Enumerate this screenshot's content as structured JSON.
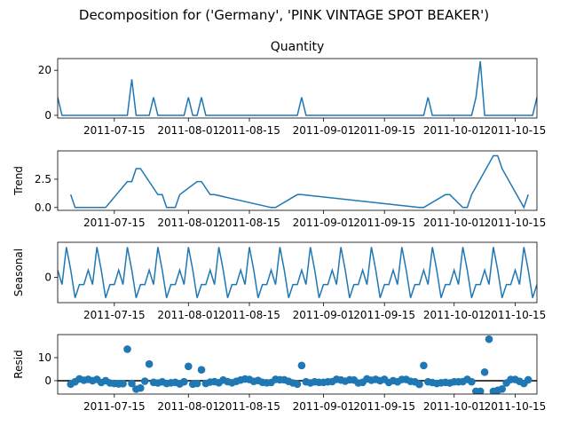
{
  "title": "Decomposition for ('Germany', 'PINK VINTAGE SPOT BEAKER')",
  "colors": {
    "series": "#1f77b4",
    "axis": "#000000",
    "zero_line": "#000000"
  },
  "x_ticks": [
    "2011-07-15",
    "2011-08-01",
    "2011-08-15",
    "2011-09-01",
    "2011-09-15",
    "2011-10-01",
    "2011-10-15"
  ],
  "chart_data": [
    {
      "type": "line",
      "subtitle": "Quantity",
      "ylabel": "",
      "xlim": [
        "2011-07-02",
        "2011-10-20"
      ],
      "ylim": [
        -1.2,
        25.2
      ],
      "yticks": [
        0,
        20
      ],
      "x": [
        "2011-07-02",
        "2011-07-03",
        "2011-07-06",
        "2011-07-18",
        "2011-07-19",
        "2011-07-20",
        "2011-07-23",
        "2011-07-24",
        "2011-07-25",
        "2011-07-31",
        "2011-08-01",
        "2011-08-02",
        "2011-08-03",
        "2011-08-04",
        "2011-08-05",
        "2011-08-26",
        "2011-08-27",
        "2011-08-28",
        "2011-09-24",
        "2011-09-25",
        "2011-09-26",
        "2011-10-05",
        "2011-10-06",
        "2011-10-07",
        "2011-10-08",
        "2011-10-19",
        "2011-10-20"
      ],
      "values": [
        8,
        0,
        0,
        0,
        16,
        0,
        0,
        8,
        0,
        0,
        8,
        0,
        0,
        8,
        0,
        0,
        8,
        0,
        0,
        8,
        0,
        0,
        8,
        24,
        0,
        0,
        8
      ]
    },
    {
      "type": "line",
      "subtitle": "",
      "ylabel": "Trend",
      "xlim": [
        "2011-07-02",
        "2011-10-20"
      ],
      "ylim": [
        -0.25,
        5.0
      ],
      "yticks": [
        0.0,
        2.5
      ],
      "yticklabels": [
        "0.0",
        "2.5"
      ],
      "x": [
        "2011-07-05",
        "2011-07-06",
        "2011-07-12",
        "2011-07-13",
        "2011-07-18",
        "2011-07-19",
        "2011-07-20",
        "2011-07-21",
        "2011-07-25",
        "2011-07-26",
        "2011-07-27",
        "2011-07-29",
        "2011-07-30",
        "2011-08-03",
        "2011-08-04",
        "2011-08-06",
        "2011-08-07",
        "2011-08-20",
        "2011-08-21",
        "2011-08-26",
        "2011-08-27",
        "2011-09-23",
        "2011-09-24",
        "2011-09-29",
        "2011-09-30",
        "2011-10-03",
        "2011-10-04",
        "2011-10-05",
        "2011-10-10",
        "2011-10-11",
        "2011-10-12",
        "2011-10-17",
        "2011-10-18"
      ],
      "values": [
        1.14,
        0,
        0,
        0,
        2.29,
        2.29,
        3.43,
        3.43,
        1.14,
        1.14,
        0,
        0,
        1.14,
        2.29,
        2.29,
        1.14,
        1.14,
        0,
        0,
        1.14,
        1.14,
        0,
        0,
        1.14,
        1.14,
        0,
        0,
        1.14,
        4.57,
        4.57,
        3.43,
        0,
        1.14
      ]
    },
    {
      "type": "line",
      "subtitle": "",
      "ylabel": "Seasonal",
      "xlim": [
        "2011-07-02",
        "2011-10-20"
      ],
      "ylim": [
        -1.05,
        1.45
      ],
      "yticks": [
        0
      ],
      "pattern": [
        0.3,
        -0.3,
        1.25,
        0.3,
        -0.85,
        -0.3,
        -0.3
      ],
      "start": "2011-07-02",
      "days": 111
    },
    {
      "type": "scatter",
      "subtitle": "",
      "ylabel": "Resid",
      "xlim": [
        "2011-07-02",
        "2011-10-20"
      ],
      "ylim": [
        -5.8,
        20
      ],
      "yticks": [
        0,
        10
      ],
      "zero_line": 0,
      "x": [
        "2011-07-05",
        "2011-07-06",
        "2011-07-07",
        "2011-07-08",
        "2011-07-09",
        "2011-07-10",
        "2011-07-11",
        "2011-07-12",
        "2011-07-13",
        "2011-07-14",
        "2011-07-15",
        "2011-07-16",
        "2011-07-17",
        "2011-07-18",
        "2011-07-19",
        "2011-07-20",
        "2011-07-21",
        "2011-07-22",
        "2011-07-23",
        "2011-07-24",
        "2011-07-25",
        "2011-07-26",
        "2011-07-27",
        "2011-07-28",
        "2011-07-29",
        "2011-07-30",
        "2011-07-31",
        "2011-08-01",
        "2011-08-02",
        "2011-08-03",
        "2011-08-04",
        "2011-08-05",
        "2011-08-06",
        "2011-08-07",
        "2011-08-08",
        "2011-08-09",
        "2011-08-10",
        "2011-08-11",
        "2011-08-12",
        "2011-08-13",
        "2011-08-14",
        "2011-08-15",
        "2011-08-16",
        "2011-08-17",
        "2011-08-18",
        "2011-08-19",
        "2011-08-20",
        "2011-08-21",
        "2011-08-22",
        "2011-08-23",
        "2011-08-24",
        "2011-08-25",
        "2011-08-26",
        "2011-08-27",
        "2011-08-28",
        "2011-08-29",
        "2011-08-30",
        "2011-08-31",
        "2011-09-01",
        "2011-09-02",
        "2011-09-03",
        "2011-09-04",
        "2011-09-05",
        "2011-09-06",
        "2011-09-07",
        "2011-09-08",
        "2011-09-09",
        "2011-09-10",
        "2011-09-11",
        "2011-09-12",
        "2011-09-13",
        "2011-09-14",
        "2011-09-15",
        "2011-09-16",
        "2011-09-17",
        "2011-09-18",
        "2011-09-19",
        "2011-09-20",
        "2011-09-21",
        "2011-09-22",
        "2011-09-23",
        "2011-09-24",
        "2011-09-25",
        "2011-09-26",
        "2011-09-27",
        "2011-09-28",
        "2011-09-29",
        "2011-09-30",
        "2011-10-01",
        "2011-10-02",
        "2011-10-03",
        "2011-10-04",
        "2011-10-05",
        "2011-10-06",
        "2011-10-07",
        "2011-10-08",
        "2011-10-09",
        "2011-10-10",
        "2011-10-11",
        "2011-10-12",
        "2011-10-13",
        "2011-10-14",
        "2011-10-15",
        "2011-10-16",
        "2011-10-17",
        "2011-10-18"
      ],
      "values": [
        -1.5,
        -0.5,
        0.8,
        0.2,
        0.6,
        0,
        0.6,
        -0.8,
        0,
        -1.0,
        -1.2,
        -1.4,
        -1.3,
        13.7,
        -1.2,
        -3.7,
        -3.2,
        -0.2,
        7.2,
        -0.7,
        -1.0,
        -0.5,
        -1.2,
        -0.9,
        -0.7,
        -1.4,
        -0.5,
        6.2,
        -1.5,
        -1.2,
        4.7,
        -1.2,
        -0.6,
        -0.4,
        -0.9,
        0.3,
        -0.4,
        -0.9,
        -0.3,
        0.3,
        0.7,
        0.5,
        -0.3,
        0.1,
        -0.7,
        -0.9,
        -0.8,
        0.6,
        0.4,
        0.4,
        -0.3,
        -1.0,
        -1.5,
        6.6,
        -0.5,
        -1.0,
        -0.5,
        -0.7,
        -0.7,
        -0.5,
        -0.4,
        0.6,
        0.3,
        -0.2,
        0.4,
        0.3,
        -1.0,
        -0.7,
        0.8,
        0.2,
        0.6,
        0,
        0.6,
        -0.8,
        0,
        -0.5,
        0.5,
        0.5,
        -0.3,
        -0.5,
        -1.6,
        6.6,
        -0.5,
        -0.8,
        -1.2,
        -0.9,
        -0.7,
        -1.0,
        -0.5,
        -0.5,
        -0.4,
        0.6,
        -0.5,
        -4.6,
        -4.6,
        3.7,
        18,
        -4.6,
        -4.2,
        -3.6,
        -1.0,
        0.5,
        0.5,
        -0.3,
        -1.2,
        0.4
      ]
    }
  ]
}
